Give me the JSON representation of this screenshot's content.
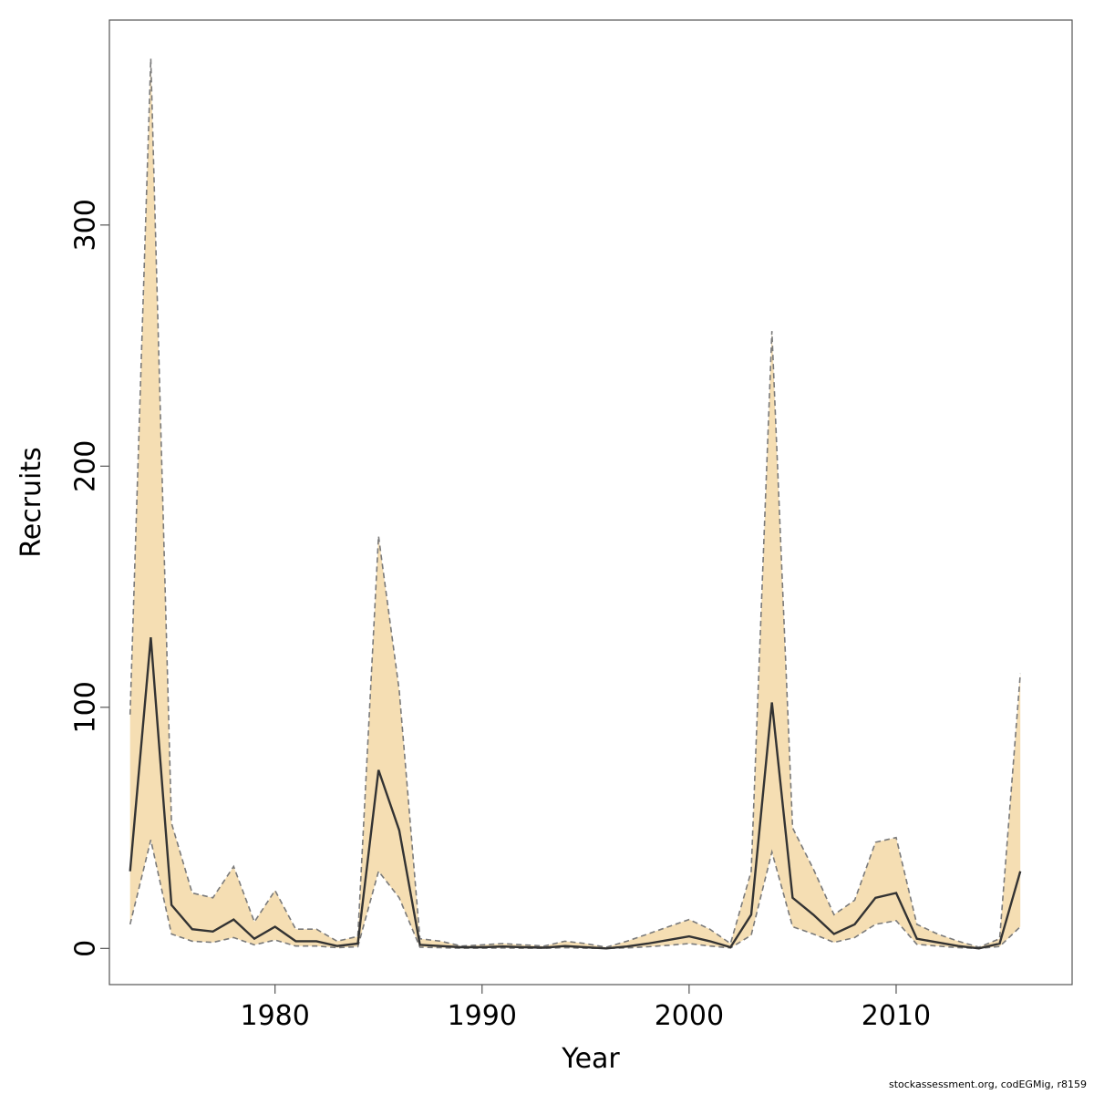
{
  "chart_data": {
    "type": "line",
    "xlabel": "Year",
    "ylabel": "Recruits",
    "xlim": [
      1972,
      2018.5
    ],
    "ylim": [
      -15,
      385
    ],
    "x_ticks": [
      1980,
      1990,
      2000,
      2010
    ],
    "y_ticks": [
      0,
      100,
      200,
      300
    ],
    "grid": false,
    "colors": {
      "band": "#f5deb3",
      "line": "#333333",
      "bounds": "#7a7a7a"
    },
    "x": [
      1973,
      1974,
      1975,
      1976,
      1977,
      1978,
      1979,
      1980,
      1981,
      1982,
      1983,
      1984,
      1985,
      1986,
      1987,
      1988,
      1989,
      1990,
      1991,
      1992,
      1993,
      1994,
      1995,
      1996,
      1997,
      1998,
      1999,
      2000,
      2001,
      2002,
      2003,
      2004,
      2005,
      2006,
      2007,
      2008,
      2009,
      2010,
      2011,
      2012,
      2013,
      2014,
      2015,
      2016
    ],
    "series": [
      {
        "role": "estimate",
        "values": [
          32,
          129,
          18,
          8,
          7,
          12,
          4,
          9,
          3,
          3,
          1,
          2,
          74,
          49,
          1.5,
          1,
          0.5,
          0.5,
          0.8,
          0.5,
          0.3,
          1,
          0.5,
          0,
          0.8,
          2,
          3.5,
          5,
          3,
          0.5,
          14,
          102,
          21,
          14,
          6,
          10,
          21,
          23,
          4,
          2.5,
          1,
          0,
          2,
          32
        ]
      },
      {
        "role": "upper",
        "values": [
          97,
          369,
          52,
          23,
          21,
          34,
          11,
          24,
          8,
          8,
          3,
          5,
          171,
          107,
          4,
          3,
          1,
          1.5,
          2,
          1.5,
          1,
          3,
          2,
          0.5,
          3,
          6,
          9,
          12,
          8,
          2,
          32,
          256,
          50,
          33,
          14,
          20,
          44,
          46,
          10,
          6,
          3,
          0.5,
          4,
          114
        ]
      },
      {
        "role": "lower",
        "values": [
          10,
          45,
          6,
          3,
          2.5,
          4.5,
          1.5,
          3.5,
          1,
          1,
          0.3,
          0.7,
          32,
          21,
          0.5,
          0.3,
          0.1,
          0.1,
          0.2,
          0.1,
          0.1,
          0.3,
          0.1,
          0,
          0.2,
          0.7,
          1.3,
          2,
          1,
          0.2,
          5.5,
          40,
          9,
          6,
          2.5,
          4.5,
          10,
          11.5,
          1.7,
          1,
          0.3,
          0,
          0.8,
          9
        ]
      }
    ]
  },
  "footer": {
    "note": "stockassessment.org, codEGMig, r8159"
  }
}
